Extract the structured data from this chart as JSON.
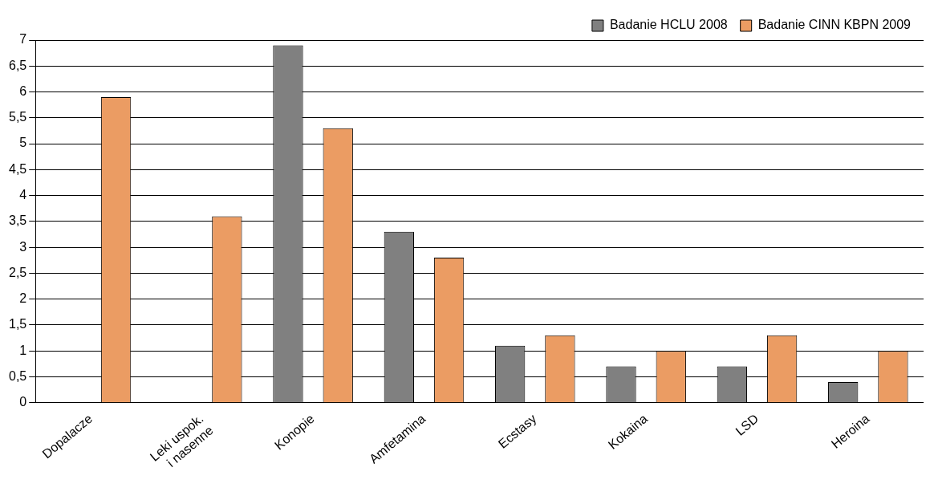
{
  "chart_data": {
    "type": "bar",
    "categories": [
      "Dopalacze",
      "Leki uspok.\ni nasenne",
      "Konopie",
      "Amfetamina",
      "Ecstasy",
      "Kokaina",
      "LSD",
      "Heroina"
    ],
    "series": [
      {
        "name": "Badanie HCLU 2008",
        "color": "#808080",
        "values": [
          null,
          null,
          6.9,
          3.3,
          1.1,
          0.7,
          0.7,
          0.4
        ]
      },
      {
        "name": "Badanie CINN KBPN 2009",
        "color": "#eb9c63",
        "values": [
          5.9,
          3.6,
          5.3,
          2.8,
          1.3,
          1.0,
          1.3,
          1.0
        ]
      }
    ],
    "ylim": [
      0,
      7
    ],
    "yticks": [
      0,
      {
        "value": 0.5,
        "label": "0,5"
      },
      1,
      {
        "value": 1.5,
        "label": "1,5"
      },
      2,
      {
        "value": 2.5,
        "label": "2,5"
      },
      3,
      {
        "value": 3.5,
        "label": "3,5"
      },
      4,
      {
        "value": 4.5,
        "label": "4,5"
      },
      5,
      {
        "value": 5.5,
        "label": "5,5"
      },
      6,
      {
        "value": 6.5,
        "label": "6,5"
      },
      7
    ],
    "grid": "y",
    "legend": "top right"
  }
}
